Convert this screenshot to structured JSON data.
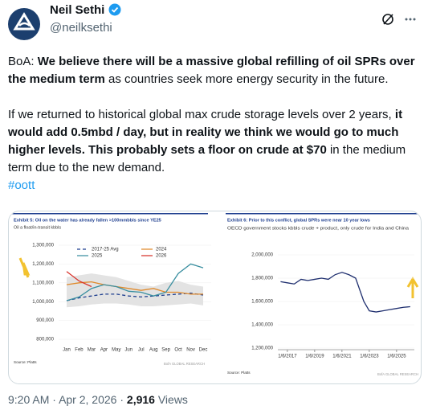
{
  "header": {
    "name": "Neil Sethi",
    "handle": "@neilksethi"
  },
  "body": {
    "paragraphs": [
      [
        {
          "text": "BoA: ",
          "bold": false
        },
        {
          "text": "We believe there will be a massive global refilling of oil SPRs over the medium term",
          "bold": true
        },
        {
          "text": " as countries seek more energy security in the future.",
          "bold": false
        }
      ],
      [
        {
          "text": "If we returned to historical global max crude storage levels over 2 years, ",
          "bold": false
        },
        {
          "text": "it would add 0.5mbd / day, but in reality we think we would go to much higher levels. This probably sets a floor on crude at $70",
          "bold": true
        },
        {
          "text": " in the medium term due to the new demand.",
          "bold": false
        }
      ]
    ],
    "hashtag": "#oott"
  },
  "media": [
    {
      "type": "line",
      "title": "Exhibit 5: Oil on the water has already fallen >100mmbbls since YE25",
      "subtitle": "Oil a float/in-transit kbbls",
      "categories": [
        "Jan",
        "Feb",
        "Mar",
        "Apr",
        "May",
        "Jun",
        "Jul",
        "Aug",
        "Sep",
        "Oct",
        "Nov",
        "Dec"
      ],
      "range": {
        "color": "#e3e3e3",
        "high": [
          1130000,
          1140000,
          1150000,
          1140000,
          1130000,
          1110000,
          1090000,
          1080000,
          1100000,
          1110000,
          1090000,
          1080000
        ],
        "low": [
          970000,
          975000,
          985000,
          990000,
          990000,
          985000,
          975000,
          975000,
          980000,
          985000,
          990000,
          980000
        ]
      },
      "series": [
        {
          "name": "2017-25 Avg",
          "color": "#1f3f8f",
          "dashed": true,
          "values": [
            1005000,
            1020000,
            1030000,
            1040000,
            1040000,
            1030000,
            1025000,
            1030000,
            1035000,
            1040000,
            1045000,
            1035000
          ]
        },
        {
          "name": "2024",
          "color": "#e08a2c",
          "dashed": false,
          "values": [
            1090000,
            1100000,
            1105000,
            1090000,
            1080000,
            1070000,
            1060000,
            1070000,
            1050000,
            1050000,
            1040000,
            1040000
          ]
        },
        {
          "name": "2025",
          "color": "#3a8fa0",
          "dashed": false,
          "values": [
            1005000,
            1025000,
            1070000,
            1090000,
            1080000,
            1055000,
            1050000,
            1030000,
            1050000,
            1150000,
            1200000,
            1180000
          ]
        },
        {
          "name": "2026",
          "color": "#d8342c",
          "dashed": false,
          "values": [
            1160000,
            1110000,
            1080000,
            null,
            null,
            null,
            null,
            null,
            null,
            null,
            null,
            null
          ]
        }
      ],
      "ylim": [
        800000,
        1300000
      ],
      "yticks": [
        {
          "value": 800000,
          "label": "800,000"
        },
        {
          "value": 900000,
          "label": "900,000"
        },
        {
          "value": 1000000,
          "label": "1,000,000"
        },
        {
          "value": 1100000,
          "label": "1,100,000"
        },
        {
          "value": 1200000,
          "label": "1,200,000"
        },
        {
          "value": 1300000,
          "label": "1,300,000"
        }
      ],
      "source": "Source: Platts",
      "credit": "BofA GLOBAL RESEARCH"
    },
    {
      "type": "line",
      "title": "Exhibit 6: Prior to this conflict, global SPRs were near 10 year lows",
      "subtitle": "OECD government stocks kbbls crude + product, only crude for India and China",
      "series": [
        {
          "color": "#1f2f6f",
          "x": [
            2016.5,
            2017,
            2017.5,
            2018,
            2018.5,
            2019,
            2019.5,
            2020,
            2020.5,
            2021,
            2021.5,
            2022,
            2022.3,
            2022.6,
            2023,
            2023.5,
            2024,
            2024.5,
            2025,
            2025.5,
            2026
          ],
          "values": [
            1770000,
            1760000,
            1750000,
            1790000,
            1780000,
            1790000,
            1800000,
            1790000,
            1830000,
            1850000,
            1830000,
            1800000,
            1700000,
            1600000,
            1520000,
            1510000,
            1520000,
            1530000,
            1540000,
            1550000,
            1555000
          ]
        }
      ],
      "xlim": [
        2016.3,
        2026.3
      ],
      "xticks": [
        {
          "value": 2017,
          "label": "1/6/2017"
        },
        {
          "value": 2019,
          "label": "1/6/2019"
        },
        {
          "value": 2021,
          "label": "1/6/2021"
        },
        {
          "value": 2023,
          "label": "1/6/2023"
        },
        {
          "value": 2025,
          "label": "1/6/2025"
        }
      ],
      "ylim": [
        1200000,
        2000000
      ],
      "yticks": [
        {
          "value": 1200000,
          "label": "1,200,000"
        },
        {
          "value": 1400000,
          "label": "1,400,000"
        },
        {
          "value": 1600000,
          "label": "1,600,000"
        },
        {
          "value": 1800000,
          "label": "1,800,000"
        },
        {
          "value": 2000000,
          "label": "2,000,000"
        }
      ],
      "source": "Source: Platts",
      "credit": "BofA GLOBAL RESEARCH"
    }
  ],
  "footer": {
    "time": "9:20 AM",
    "separator": "·",
    "date": "Apr 2, 2026",
    "views": "2,916",
    "views_label": "Views"
  }
}
